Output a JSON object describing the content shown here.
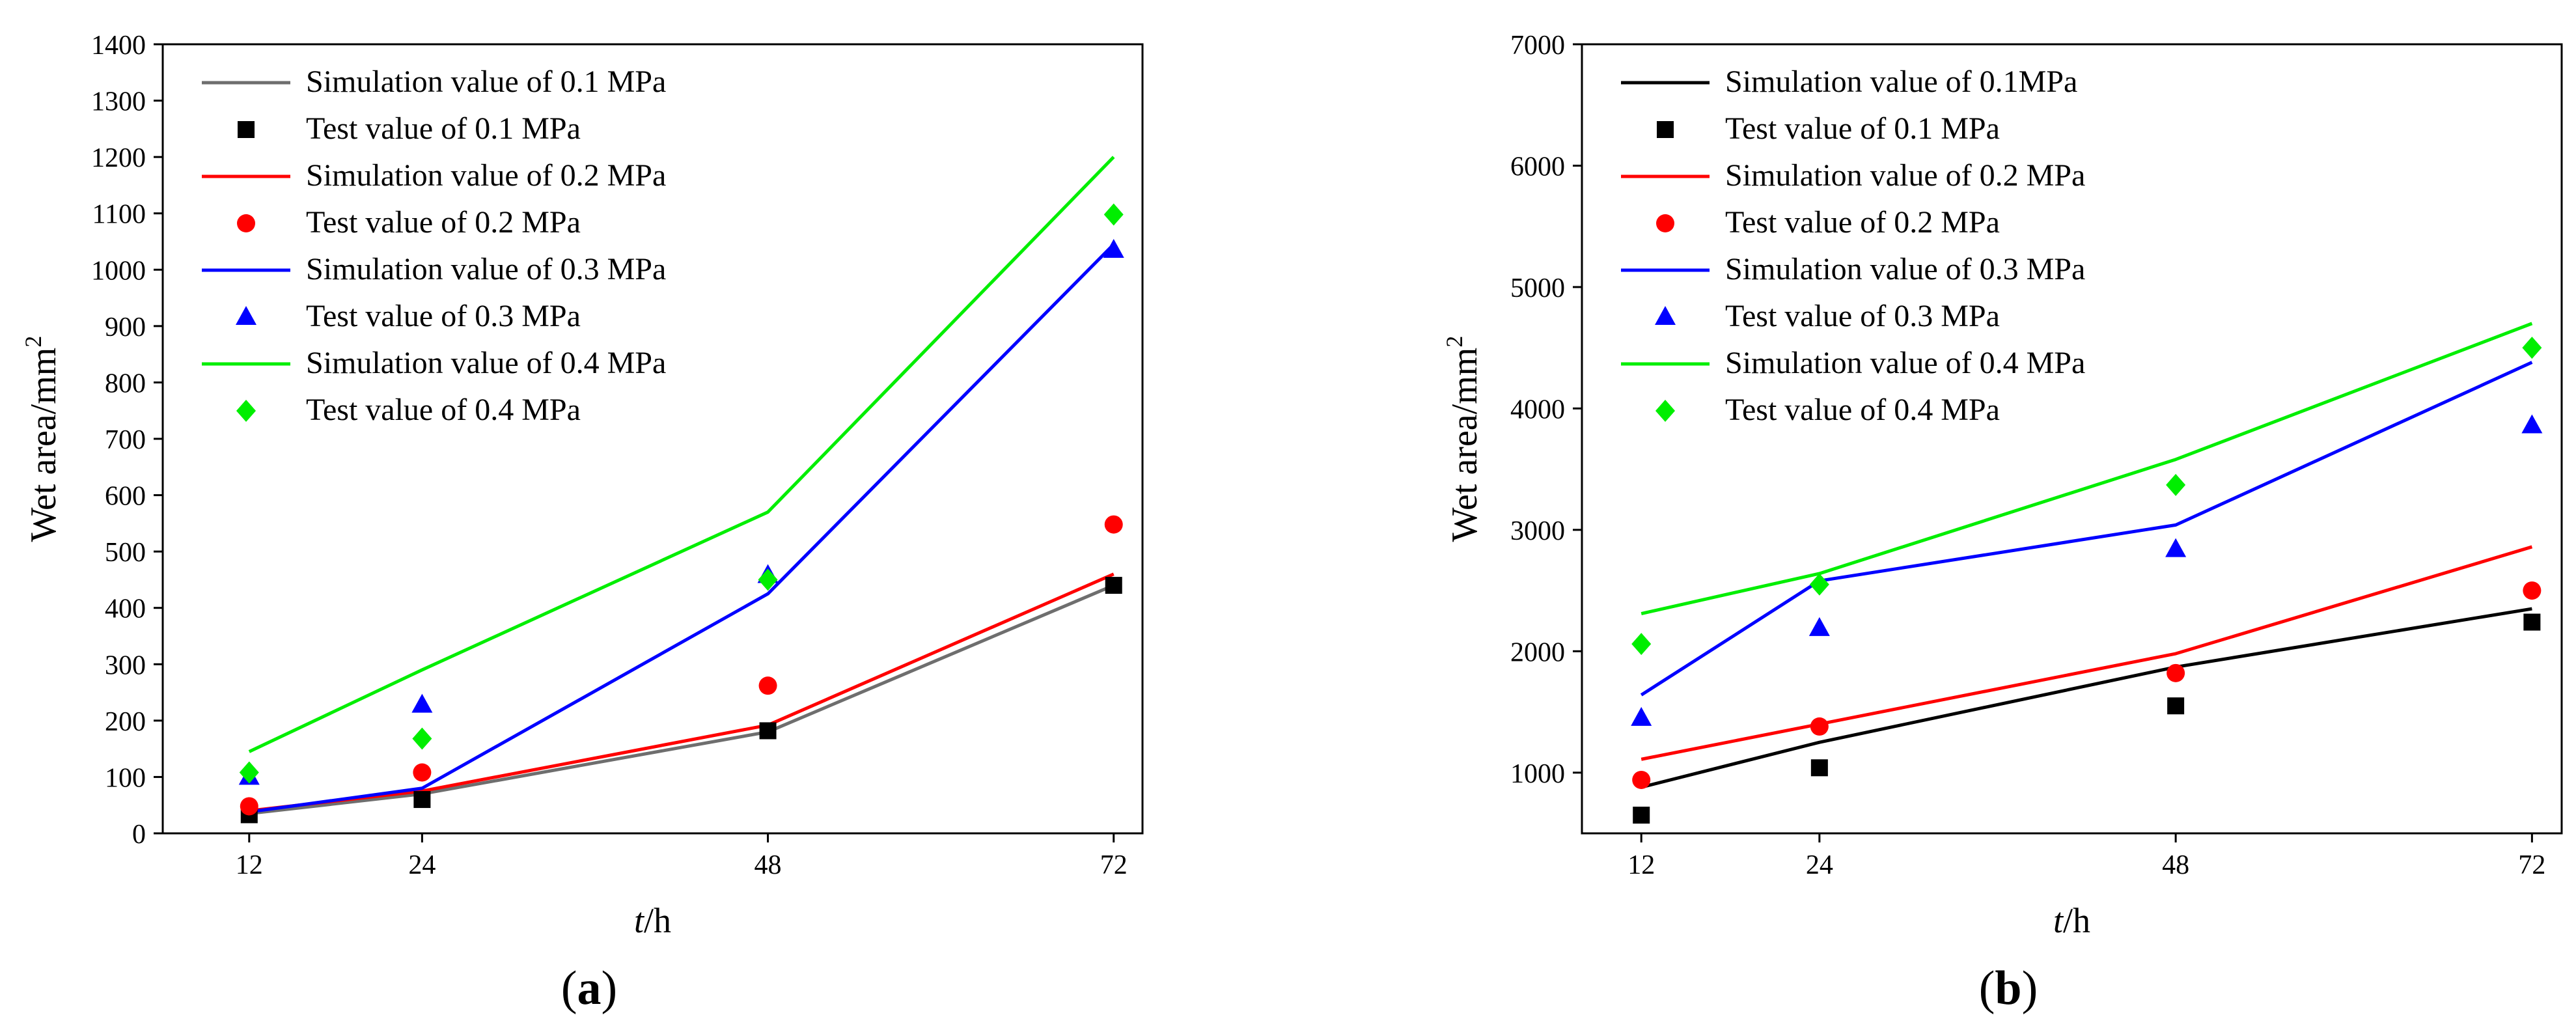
{
  "colors": {
    "black": "#000000",
    "gray": "#6e6e6e",
    "red": "#ff0000",
    "blue": "#0000ff",
    "green": "#00ee00"
  },
  "chart_data": [
    {
      "type": "line",
      "panel_label": "a",
      "xlabel_var": "t",
      "xlabel_unit": "/h",
      "ylabel_text": "Wet area/mm",
      "ylabel_sup": "2",
      "x": [
        12,
        24,
        48,
        72
      ],
      "xticks": [
        "12",
        "24",
        "48",
        "72"
      ],
      "xlim": [
        6,
        74
      ],
      "ylim": [
        0,
        1400
      ],
      "yticks": [
        0,
        100,
        200,
        300,
        400,
        500,
        600,
        700,
        800,
        900,
        1000,
        1100,
        1200,
        1300,
        1400
      ],
      "simulation": [
        {
          "name": "Simulation value of 0.1 MPa",
          "color": "#6e6e6e",
          "values": [
            35,
            70,
            180,
            440
          ]
        },
        {
          "name": "Simulation value of 0.2 MPa",
          "color": "#ff0000",
          "values": [
            40,
            75,
            192,
            460
          ]
        },
        {
          "name": "Simulation value of 0.3 MPa",
          "color": "#0000ff",
          "values": [
            38,
            80,
            425,
            1045
          ]
        },
        {
          "name": "Simulation value of 0.4 MPa",
          "color": "#00ee00",
          "values": [
            145,
            290,
            570,
            1200
          ]
        }
      ],
      "test": [
        {
          "name": "Test value of 0.1 MPa",
          "color": "#000000",
          "marker": "square",
          "values": [
            33,
            60,
            182,
            440
          ]
        },
        {
          "name": "Test value of 0.2 MPa",
          "color": "#ff0000",
          "marker": "circle",
          "values": [
            48,
            108,
            262,
            548
          ]
        },
        {
          "name": "Test value of 0.3 MPa",
          "color": "#0000ff",
          "marker": "triangle",
          "values": [
            100,
            228,
            458,
            1035
          ]
        },
        {
          "name": "Test value of 0.4 MPa",
          "color": "#00ee00",
          "marker": "diamond",
          "values": [
            108,
            168,
            450,
            1098
          ]
        }
      ],
      "legend": [
        {
          "name": "Simulation value of 0.1 MPa",
          "kind": "line",
          "color": "#6e6e6e"
        },
        {
          "name": "Test value of 0.1 MPa",
          "kind": "square",
          "color": "#000000"
        },
        {
          "name": "Simulation value of 0.2 MPa",
          "kind": "line",
          "color": "#ff0000"
        },
        {
          "name": "Test value of 0.2 MPa",
          "kind": "circle",
          "color": "#ff0000"
        },
        {
          "name": "Simulation value of 0.3 MPa",
          "kind": "line",
          "color": "#0000ff"
        },
        {
          "name": "Test value of 0.3 MPa",
          "kind": "triangle",
          "color": "#0000ff"
        },
        {
          "name": "Simulation value of 0.4 MPa",
          "kind": "line",
          "color": "#00ee00"
        },
        {
          "name": "Test value of 0.4 MPa",
          "kind": "diamond",
          "color": "#00ee00"
        }
      ],
      "legend_position": "top-left"
    },
    {
      "type": "line",
      "panel_label": "b",
      "xlabel_var": "t",
      "xlabel_unit": "/h",
      "ylabel_text": "Wet area/mm",
      "ylabel_sup": "2",
      "x": [
        12,
        24,
        48,
        72
      ],
      "xticks": [
        "12",
        "24",
        "48",
        "72"
      ],
      "xlim": [
        8,
        74
      ],
      "ylim": [
        500,
        7000
      ],
      "yticks": [
        1000,
        2000,
        3000,
        4000,
        5000,
        6000,
        7000
      ],
      "simulation": [
        {
          "name": "Simulation value of 0.1MPa",
          "color": "#000000",
          "values": [
            880,
            1250,
            1870,
            2350
          ]
        },
        {
          "name": "Simulation value of 0.2 MPa",
          "color": "#ff0000",
          "values": [
            1110,
            1400,
            1980,
            2860
          ]
        },
        {
          "name": "Simulation value of 0.3 MPa",
          "color": "#0000ff",
          "values": [
            1640,
            2580,
            3040,
            4380
          ]
        },
        {
          "name": "Simulation value of 0.4 MPa",
          "color": "#00ee00",
          "values": [
            2310,
            2640,
            3580,
            4700
          ]
        }
      ],
      "test": [
        {
          "name": "Test value of 0.1 MPa",
          "color": "#000000",
          "marker": "square",
          "values": [
            650,
            1040,
            1550,
            2240
          ]
        },
        {
          "name": "Test value of 0.2 MPa",
          "color": "#ff0000",
          "marker": "circle",
          "values": [
            940,
            1380,
            1820,
            2500
          ]
        },
        {
          "name": "Test value of 0.3 MPa",
          "color": "#0000ff",
          "marker": "triangle",
          "values": [
            1450,
            2190,
            2840,
            3860
          ]
        },
        {
          "name": "Test value of 0.4 MPa",
          "color": "#00ee00",
          "marker": "diamond",
          "values": [
            2060,
            2550,
            3370,
            4500
          ]
        }
      ],
      "legend": [
        {
          "name": "Simulation value of 0.1MPa",
          "kind": "line",
          "color": "#000000"
        },
        {
          "name": "Test value of 0.1 MPa",
          "kind": "square",
          "color": "#000000"
        },
        {
          "name": "Simulation value of 0.2 MPa",
          "kind": "line",
          "color": "#ff0000"
        },
        {
          "name": "Test value of 0.2 MPa",
          "kind": "circle",
          "color": "#ff0000"
        },
        {
          "name": "Simulation value of 0.3 MPa",
          "kind": "line",
          "color": "#0000ff"
        },
        {
          "name": "Test value of 0.3 MPa",
          "kind": "triangle",
          "color": "#0000ff"
        },
        {
          "name": "Simulation value of 0.4 MPa",
          "kind": "line",
          "color": "#00ee00"
        },
        {
          "name": "Test value of 0.4 MPa",
          "kind": "diamond",
          "color": "#00ee00"
        }
      ],
      "legend_position": "top-left"
    }
  ]
}
